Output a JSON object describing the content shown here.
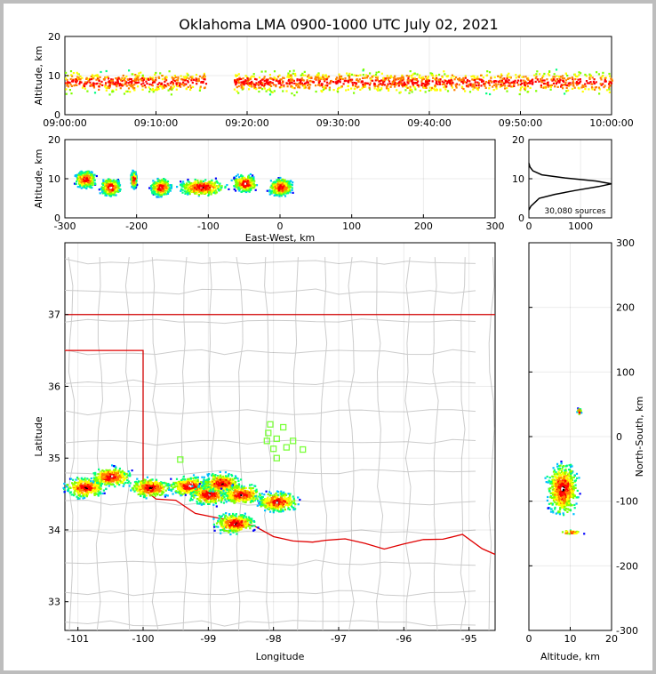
{
  "title": "Oklahoma LMA 0900-1000 UTC July 02, 2021",
  "colors": {
    "scale": [
      "#0000ff",
      "#00c0ff",
      "#00ff80",
      "#80ff00",
      "#ffff00",
      "#ff8000",
      "#ff0000",
      "#000000",
      "#ffffff"
    ],
    "border_red": "#e00000",
    "county": "#cccccc",
    "station": "#7cff3c"
  },
  "chart_data": [
    {
      "id": "time-height",
      "type": "scatter",
      "xlabel": "",
      "ylabel": "Altitude, km",
      "x_ticks": [
        "09:00:00",
        "09:10:00",
        "09:20:00",
        "09:30:00",
        "09:40:00",
        "09:50:00",
        "10:00:00"
      ],
      "x_range_minutes": [
        0,
        60
      ],
      "ylim": [
        0,
        20
      ],
      "y_ticks": [
        0,
        10,
        20
      ],
      "gap_minutes": [
        [
          15.5,
          18.5
        ]
      ],
      "band_km": [
        4,
        12
      ]
    },
    {
      "id": "ew-height",
      "type": "scatter",
      "xlabel": "East-West, km",
      "ylabel": "Altitude, km",
      "xlim": [
        -300,
        300
      ],
      "x_ticks": [
        -300,
        -200,
        -100,
        0,
        100,
        200,
        300
      ],
      "ylim": [
        0,
        20
      ],
      "y_ticks": [
        0,
        10,
        20
      ],
      "clusters": [
        [
          -290,
          -255,
          10
        ],
        [
          -255,
          -220,
          8
        ],
        [
          -210,
          -200,
          10
        ],
        [
          -185,
          -150,
          8
        ],
        [
          -150,
          -70,
          8
        ],
        [
          -70,
          -30,
          9
        ],
        [
          -20,
          20,
          8
        ]
      ]
    },
    {
      "id": "altitude-histogram",
      "type": "line",
      "xlim": [
        0,
        1600
      ],
      "x_ticks": [
        0,
        1000
      ],
      "ylim": [
        0,
        20
      ],
      "y_ticks": [
        0,
        10,
        20
      ],
      "points": [
        [
          0,
          2
        ],
        [
          40,
          3
        ],
        [
          120,
          4
        ],
        [
          200,
          5
        ],
        [
          500,
          6
        ],
        [
          900,
          7
        ],
        [
          1350,
          8
        ],
        [
          1600,
          8.7
        ],
        [
          1300,
          9.4
        ],
        [
          700,
          10.2
        ],
        [
          250,
          11
        ],
        [
          80,
          12
        ],
        [
          20,
          13
        ],
        [
          0,
          14
        ]
      ],
      "annotation": "30,080 sources"
    },
    {
      "id": "plan-view",
      "type": "scatter",
      "xlabel": "Longitude",
      "ylabel": "Latitude",
      "xlim": [
        -101.2,
        -94.6
      ],
      "ylim": [
        32.6,
        38.0
      ],
      "x_ticks": [
        -101,
        -100,
        -99,
        -98,
        -97,
        -96,
        -95
      ],
      "y_ticks": [
        33,
        34,
        35,
        36,
        37
      ],
      "stations": [
        [
          -98.05,
          35.47
        ],
        [
          -97.85,
          35.43
        ],
        [
          -98.08,
          35.35
        ],
        [
          -97.95,
          35.27
        ],
        [
          -98.1,
          35.24
        ],
        [
          -97.7,
          35.24
        ],
        [
          -98.0,
          35.13
        ],
        [
          -97.8,
          35.15
        ],
        [
          -97.55,
          35.12
        ],
        [
          -97.95,
          35.0
        ],
        [
          -99.43,
          34.98
        ]
      ],
      "clusters": [
        [
          -100.9,
          34.6
        ],
        [
          -100.5,
          34.75
        ],
        [
          -99.9,
          34.6
        ],
        [
          -99.3,
          34.62
        ],
        [
          -99.0,
          34.5
        ],
        [
          -98.8,
          34.66
        ],
        [
          -98.5,
          34.5
        ],
        [
          -97.95,
          34.4
        ],
        [
          -98.6,
          34.1
        ]
      ]
    },
    {
      "id": "ns-height",
      "type": "scatter",
      "xlabel": "Altitude, km",
      "ylabel": "North-South, km",
      "xlim": [
        0,
        20
      ],
      "x_ticks": [
        0,
        10,
        20
      ],
      "ylim": [
        -300,
        300
      ],
      "y_ticks": [
        -300,
        -200,
        -100,
        0,
        100,
        200,
        300
      ]
    }
  ]
}
